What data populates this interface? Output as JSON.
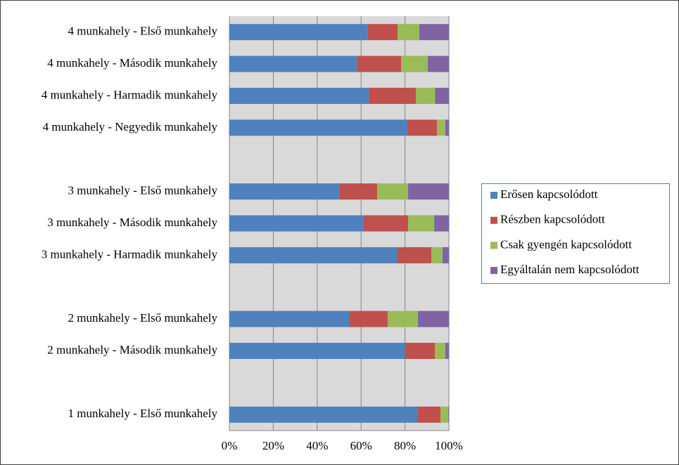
{
  "chart_data": {
    "type": "stacked-barh",
    "categories": [
      "4 munkahely - Első munkahely",
      "4 munkahely - Második munkahely",
      "4 munkahely - Harmadik munkahely",
      "4 munkahely - Negyedik munkahely",
      null,
      "3 munkahely - Első munkahely",
      "3 munkahely - Második munkahely",
      "3 munkahely - Harmadik munkahely",
      null,
      "2 munkahely - Első munkahely",
      "2 munkahely - Második munkahely",
      null,
      "1 munkahely - Első munkahely"
    ],
    "series": [
      {
        "name": "Erősen kapcsolódott",
        "color": "#4f81bd",
        "values": [
          63.1,
          58.3,
          63.5,
          81.1,
          null,
          50.3,
          61.2,
          76.6,
          null,
          54.8,
          80.1,
          null,
          85.9
        ]
      },
      {
        "name": "Részben kapcsolódott",
        "color": "#c0504d",
        "values": [
          13.5,
          19.9,
          21.5,
          13.5,
          null,
          17.0,
          20.2,
          15.4,
          null,
          17.3,
          13.5,
          null,
          10.3
        ]
      },
      {
        "name": "Csak gyengén kapcsolódott",
        "color": "#9bbb59",
        "values": [
          9.9,
          12.2,
          8.7,
          3.8,
          null,
          14.1,
          11.9,
          5.1,
          null,
          13.8,
          4.8,
          null,
          3.5
        ]
      },
      {
        "name": "Egyáltalán nem kapcsolódott",
        "color": "#8064a2",
        "values": [
          13.5,
          9.6,
          6.3,
          1.6,
          null,
          18.6,
          6.7,
          2.9,
          null,
          14.1,
          1.6,
          null,
          0.3
        ]
      }
    ],
    "xlim": [
      0,
      100
    ],
    "xticks": [
      {
        "value": 0,
        "label": "0%"
      },
      {
        "value": 20,
        "label": "20%"
      },
      {
        "value": 40,
        "label": "40%"
      },
      {
        "value": 60,
        "label": "60%"
      },
      {
        "value": 80,
        "label": "80%"
      },
      {
        "value": 100,
        "label": "100%"
      }
    ],
    "grid": true,
    "legend": "right"
  }
}
